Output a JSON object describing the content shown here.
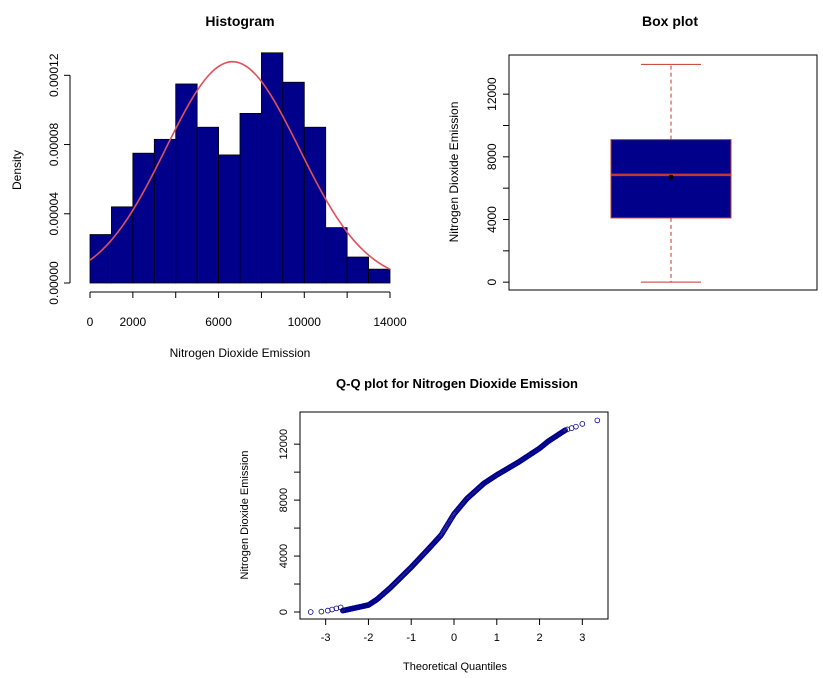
{
  "chart_data": [
    {
      "type": "histogram",
      "title": "Histogram",
      "xlabel": "Nitrogen Dioxide Emission",
      "ylabel": "Density",
      "xlim": [
        0,
        14000
      ],
      "ylim": [
        0,
        0.00013
      ],
      "x_ticks": [
        0,
        2000,
        6000,
        10000,
        14000
      ],
      "x_tick_labels": [
        "0",
        "2000",
        "6000",
        "10000",
        "14000"
      ],
      "y_ticks": [
        0,
        4e-05,
        8e-05,
        0.00012
      ],
      "y_tick_labels": [
        "0.00000",
        "0.00004",
        "0.00008",
        "0.00012"
      ],
      "bin_width": 1000,
      "bins": [
        {
          "start": 0,
          "end": 1000,
          "density": 2.8e-05
        },
        {
          "start": 1000,
          "end": 2000,
          "density": 4.4e-05
        },
        {
          "start": 2000,
          "end": 3000,
          "density": 7.5e-05
        },
        {
          "start": 3000,
          "end": 4000,
          "density": 8.3e-05
        },
        {
          "start": 4000,
          "end": 5000,
          "density": 0.000115
        },
        {
          "start": 5000,
          "end": 6000,
          "density": 9e-05
        },
        {
          "start": 6000,
          "end": 7000,
          "density": 7.4e-05
        },
        {
          "start": 7000,
          "end": 8000,
          "density": 9.8e-05
        },
        {
          "start": 8000,
          "end": 9000,
          "density": 0.000133
        },
        {
          "start": 9000,
          "end": 10000,
          "density": 0.000116
        },
        {
          "start": 10000,
          "end": 11000,
          "density": 9e-05
        },
        {
          "start": 11000,
          "end": 12000,
          "density": 3.2e-05
        },
        {
          "start": 12000,
          "end": 13000,
          "density": 1.5e-05
        },
        {
          "start": 13000,
          "end": 14000,
          "density": 8e-06
        }
      ],
      "density_curve": {
        "distribution": "normal",
        "mean": 6650,
        "sd": 3120,
        "color": "#e0505a"
      },
      "bar_color": "#00008b",
      "grid": false
    },
    {
      "type": "boxplot",
      "title": "Box plot",
      "ylabel": "Nitrogen Dioxide Emission",
      "ylim": [
        -500,
        14500
      ],
      "y_ticks": [
        0,
        4000,
        8000,
        12000
      ],
      "y_tick_labels": [
        "0",
        "4000",
        "8000",
        "12000"
      ],
      "stats": {
        "min": 0,
        "q1": 4100,
        "median": 6850,
        "mean": 6700,
        "q3": 9100,
        "max": 13900
      },
      "box_color": "#00008b",
      "line_color": "#c0392b",
      "grid": false
    },
    {
      "type": "scatter",
      "title": "Q-Q plot for Nitrogen Dioxide Emission",
      "xlabel": "Theoretical Quantiles",
      "ylabel": "Nitrogen Dioxide Emission",
      "xlim": [
        -3.6,
        3.6
      ],
      "ylim": [
        -500,
        14300
      ],
      "x_ticks": [
        -3,
        -2,
        -1,
        0,
        1,
        2,
        3
      ],
      "x_tick_labels": [
        "-3",
        "-2",
        "-1",
        "0",
        "1",
        "2",
        "3"
      ],
      "y_ticks": [
        0,
        4000,
        8000,
        12000
      ],
      "y_tick_labels": [
        "0",
        "4000",
        "8000",
        "12000"
      ],
      "quantile_curve": [
        [
          -2.6,
          100
        ],
        [
          -2.0,
          500
        ],
        [
          -1.8,
          900
        ],
        [
          -1.5,
          1700
        ],
        [
          -1.0,
          3200
        ],
        [
          -0.6,
          4500
        ],
        [
          -0.3,
          5500
        ],
        [
          0.0,
          7000
        ],
        [
          0.3,
          8100
        ],
        [
          0.7,
          9200
        ],
        [
          1.0,
          9800
        ],
        [
          1.5,
          10700
        ],
        [
          2.0,
          11700
        ],
        [
          2.2,
          12200
        ],
        [
          2.5,
          12800
        ],
        [
          2.6,
          13000
        ]
      ],
      "tail_points": [
        [
          -3.35,
          0
        ],
        [
          -3.1,
          30
        ],
        [
          -2.95,
          100
        ],
        [
          -2.85,
          180
        ],
        [
          -2.75,
          260
        ],
        [
          -2.65,
          330
        ],
        [
          2.65,
          13050
        ],
        [
          2.75,
          13150
        ],
        [
          2.85,
          13250
        ],
        [
          3.0,
          13450
        ],
        [
          3.35,
          13700
        ]
      ],
      "marker_color": "#00008b",
      "grid": false
    }
  ]
}
